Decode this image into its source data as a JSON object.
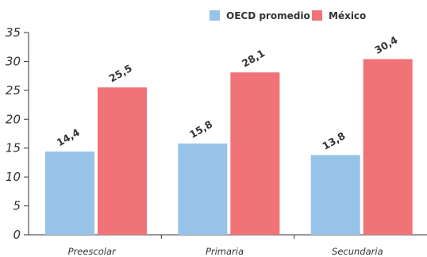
{
  "chart_data": {
    "type": "bar",
    "title": "",
    "xlabel": "",
    "ylabel": "",
    "categories": [
      "Preescolar",
      "Primaria",
      "Secundaria"
    ],
    "series": [
      {
        "name": "OECD promedio",
        "values": [
          14.4,
          15.8,
          13.8
        ],
        "labels": [
          "14,4",
          "15,8",
          "13,8"
        ],
        "color": "#97c3e8"
      },
      {
        "name": "México",
        "values": [
          25.5,
          28.1,
          30.4
        ],
        "labels": [
          "25,5",
          "28,1",
          "30,4"
        ],
        "color": "#f07377"
      }
    ],
    "ylim": [
      0,
      35
    ],
    "yticks": [
      0,
      5,
      10,
      15,
      20,
      25,
      30,
      35
    ],
    "grid": false,
    "legend_position": "top-right",
    "axis_color": "#333333"
  }
}
